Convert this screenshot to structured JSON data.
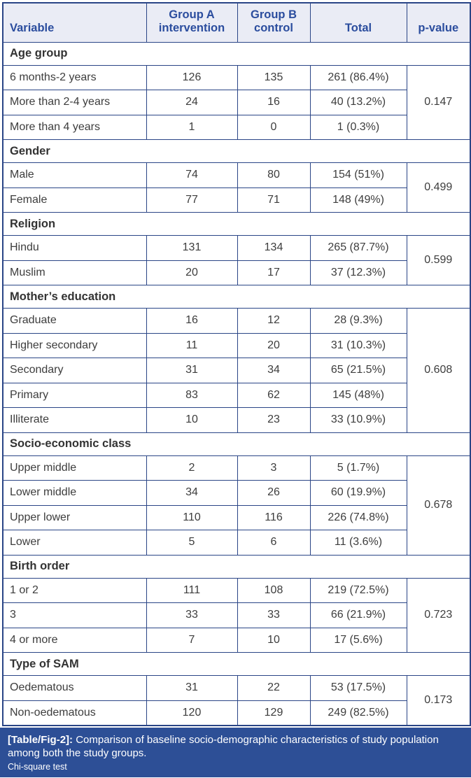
{
  "table": {
    "headers": [
      "Variable",
      "Group A\nintervention",
      "Group B\ncontrol",
      "Total",
      "p-value"
    ],
    "sections": [
      {
        "name": "Age group",
        "p_value": "0.147",
        "rows": [
          {
            "label": "6 months-2 years",
            "group_a": "126",
            "group_b": "135",
            "total": "261 (86.4%)"
          },
          {
            "label": "More than 2-4 years",
            "group_a": "24",
            "group_b": "16",
            "total": "40 (13.2%)"
          },
          {
            "label": "More than 4 years",
            "group_a": "1",
            "group_b": "0",
            "total": "1 (0.3%)"
          }
        ]
      },
      {
        "name": "Gender",
        "p_value": "0.499",
        "rows": [
          {
            "label": "Male",
            "group_a": "74",
            "group_b": "80",
            "total": "154 (51%)"
          },
          {
            "label": "Female",
            "group_a": "77",
            "group_b": "71",
            "total": "148 (49%)"
          }
        ]
      },
      {
        "name": "Religion",
        "p_value": "0.599",
        "rows": [
          {
            "label": "Hindu",
            "group_a": "131",
            "group_b": "134",
            "total": "265 (87.7%)"
          },
          {
            "label": "Muslim",
            "group_a": "20",
            "group_b": "17",
            "total": "37 (12.3%)"
          }
        ]
      },
      {
        "name": "Mother’s education",
        "p_value": "0.608",
        "rows": [
          {
            "label": "Graduate",
            "group_a": "16",
            "group_b": "12",
            "total": "28 (9.3%)"
          },
          {
            "label": "Higher secondary",
            "group_a": "11",
            "group_b": "20",
            "total": "31 (10.3%)"
          },
          {
            "label": "Secondary",
            "group_a": "31",
            "group_b": "34",
            "total": "65 (21.5%)"
          },
          {
            "label": "Primary",
            "group_a": "83",
            "group_b": "62",
            "total": "145 (48%)"
          },
          {
            "label": "Illiterate",
            "group_a": "10",
            "group_b": "23",
            "total": "33 (10.9%)"
          }
        ]
      },
      {
        "name": "Socio-economic class",
        "p_value": "0.678",
        "rows": [
          {
            "label": "Upper middle",
            "group_a": "2",
            "group_b": "3",
            "total": "5 (1.7%)"
          },
          {
            "label": "Lower middle",
            "group_a": "34",
            "group_b": "26",
            "total": "60 (19.9%)"
          },
          {
            "label": "Upper lower",
            "group_a": "110",
            "group_b": "116",
            "total": "226 (74.8%)"
          },
          {
            "label": "Lower",
            "group_a": "5",
            "group_b": "6",
            "total": "11 (3.6%)"
          }
        ]
      },
      {
        "name": "Birth order",
        "p_value": "0.723",
        "rows": [
          {
            "label": "1 or 2",
            "group_a": "111",
            "group_b": "108",
            "total": "219 (72.5%)"
          },
          {
            "label": "3",
            "group_a": "33",
            "group_b": "33",
            "total": "66 (21.9%)"
          },
          {
            "label": "4 or more",
            "group_a": "7",
            "group_b": "10",
            "total": "17 (5.6%)"
          }
        ]
      },
      {
        "name": "Type of SAM",
        "p_value": "0.173",
        "rows": [
          {
            "label": "Oedematous",
            "group_a": "31",
            "group_b": "22",
            "total": "53 (17.5%)"
          },
          {
            "label": "Non-oedematous",
            "group_a": "120",
            "group_b": "129",
            "total": "249 (82.5%)"
          }
        ]
      }
    ]
  },
  "caption": {
    "tag": "[Table/Fig-2]:",
    "text": " Comparison of baseline socio-demographic characteristics of study population among both the study groups.",
    "note": "Chi-square test"
  },
  "colors": {
    "border_navy": "#2a4586",
    "header_bg": "#eaecf5",
    "header_text": "#2b4d9e",
    "body_text": "#3d3d3d",
    "caption_bg": "#2d4f96",
    "caption_text": "#ffffff"
  }
}
